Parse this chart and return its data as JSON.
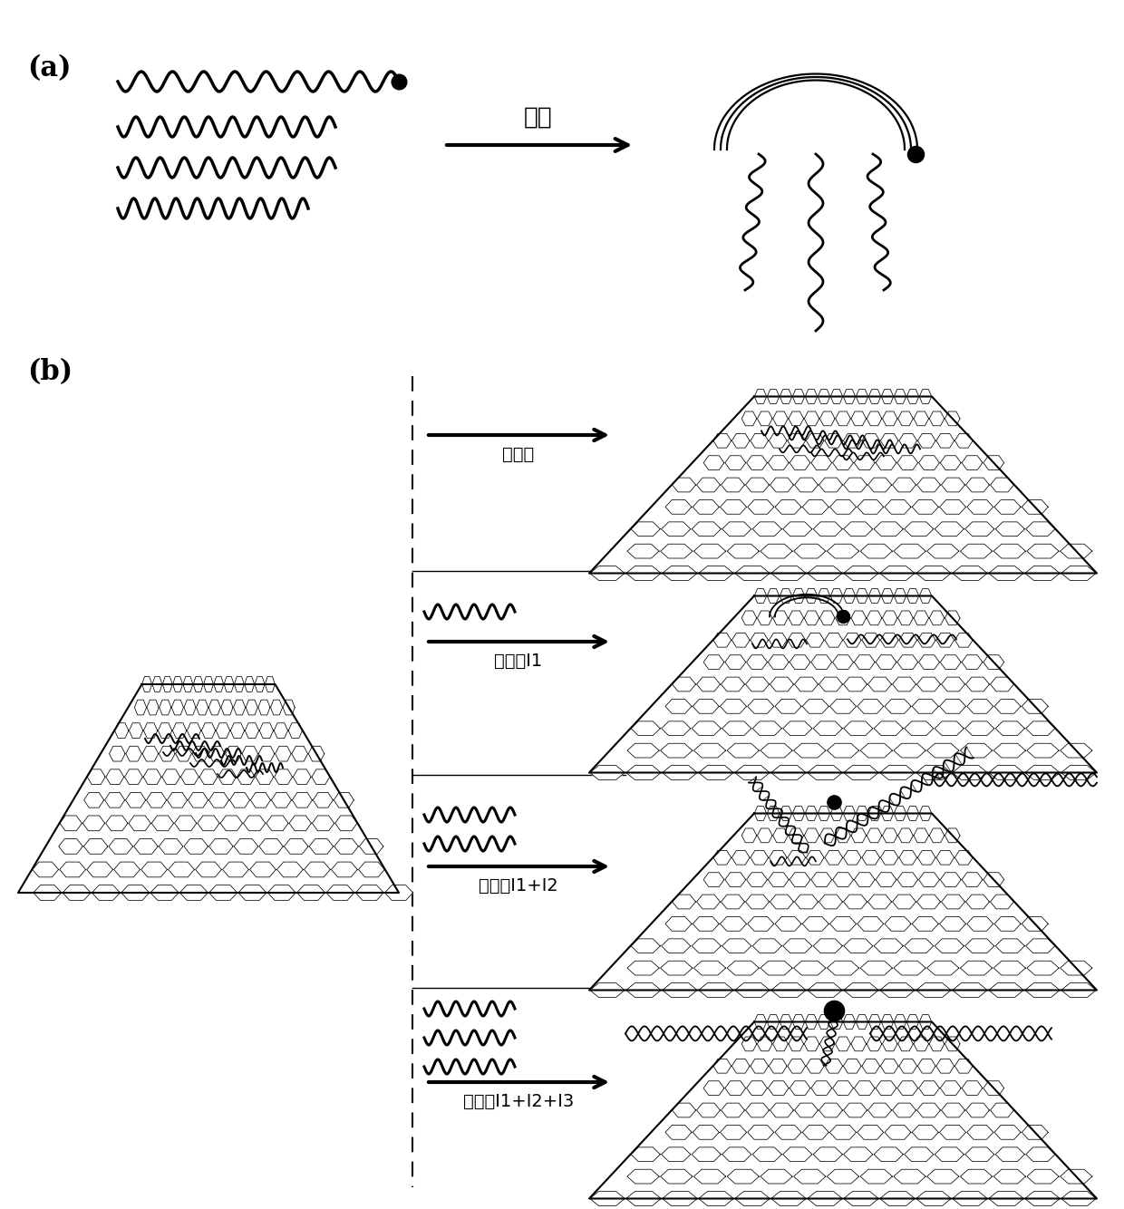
{
  "background_color": "#ffffff",
  "label_a": "(a)",
  "label_b": "(b)",
  "arrow_label_a": "退火",
  "arrow_label_b0": "无输入",
  "arrow_label_b1": "输入：I1",
  "arrow_label_b2": "输入：I1+I2",
  "arrow_label_b3": "输入：I1+I2+I3"
}
